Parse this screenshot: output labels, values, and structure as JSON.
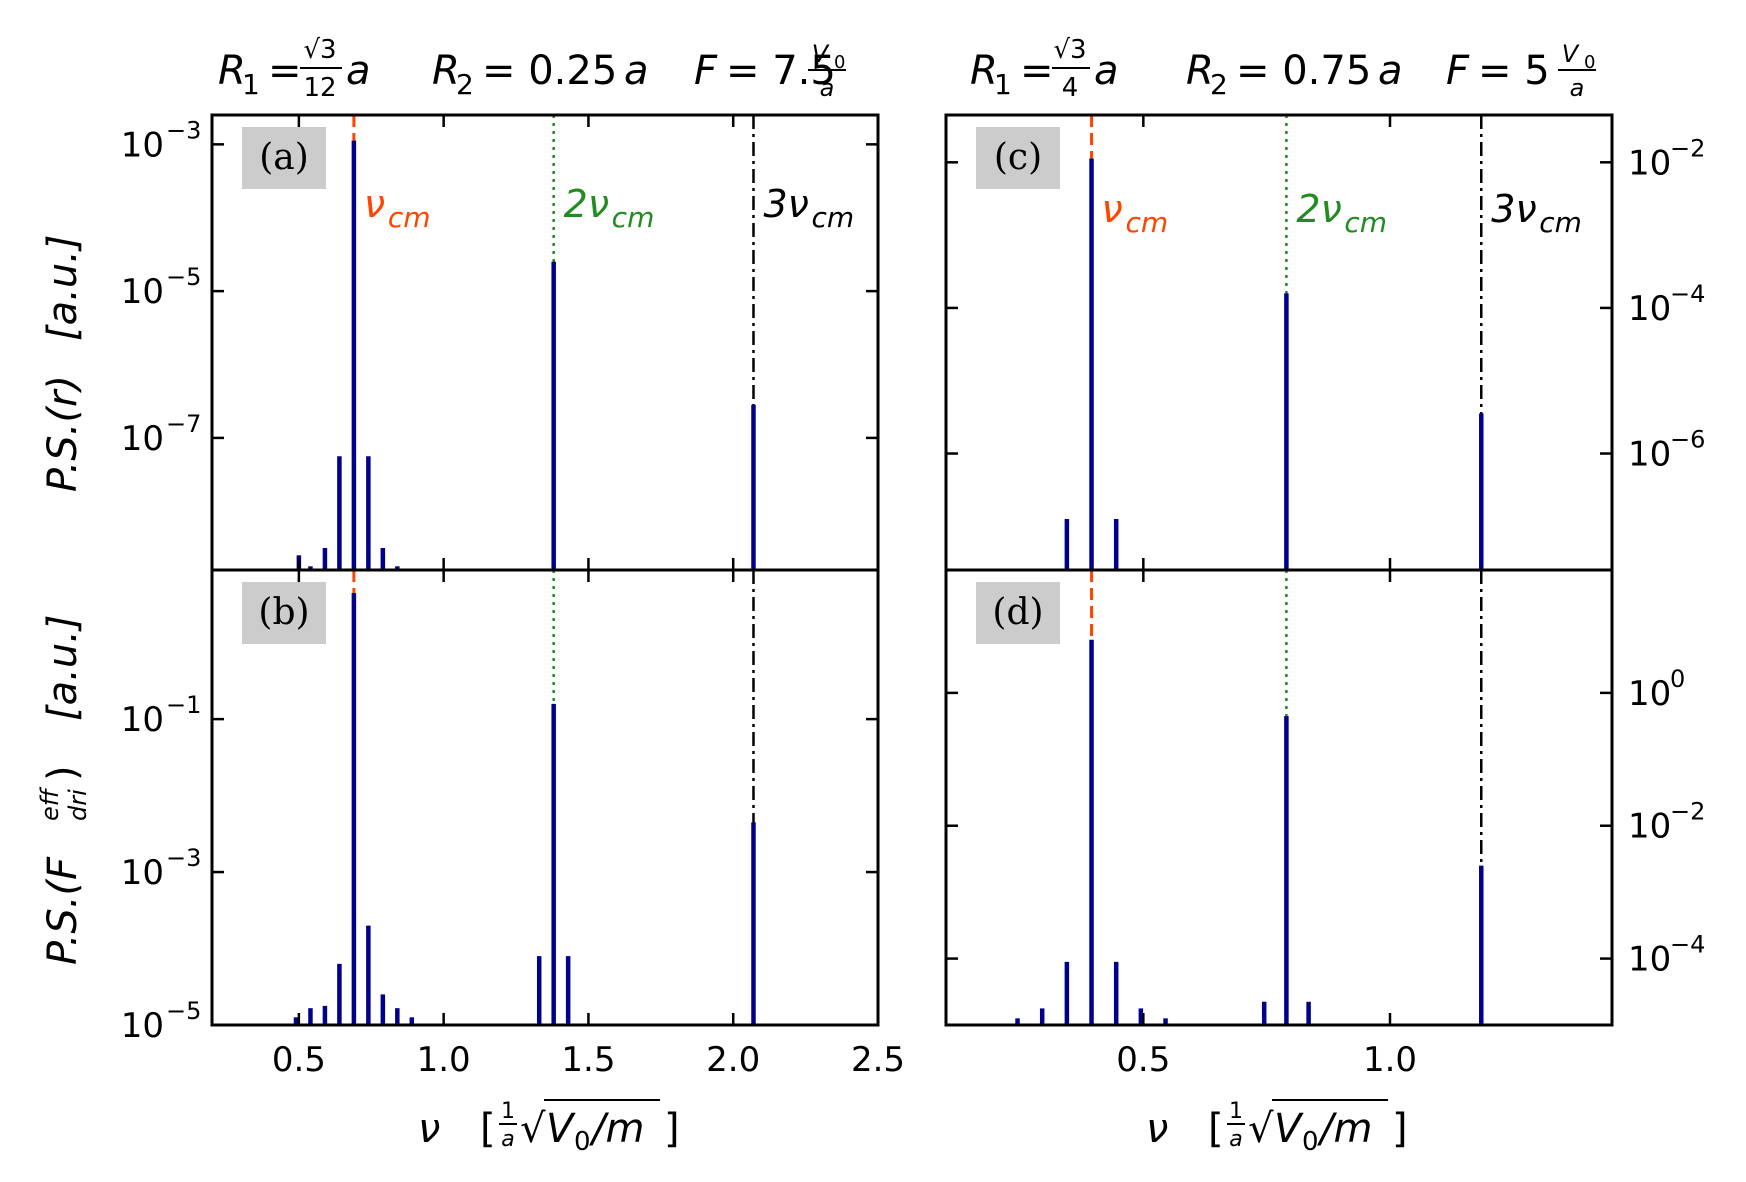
{
  "colors": {
    "spectrum": "#00008b",
    "nu_cm": "#ff4500",
    "two_nu_cm": "#228b22",
    "three_nu_cm": "#000000",
    "label_box": "#cccccc"
  },
  "titles": {
    "left": {
      "R1_lhs": "R",
      "R1_sub": "1",
      "R1_eq": "=",
      "R1_num": "√3",
      "R1_den": "12",
      "R1_unit": "a",
      "R2_lhs": "R",
      "R2_sub": "2",
      "R2_eq": "= 0.25",
      "R2_unit": "a",
      "F_lhs": "F",
      "F_eq": "= 7.5",
      "F_num": "V",
      "F_num_sub": "0",
      "F_den": "a"
    },
    "right": {
      "R1_lhs": "R",
      "R1_sub": "1",
      "R1_eq": "=",
      "R1_num": "√3",
      "R1_den": "4",
      "R1_unit": "a",
      "R2_lhs": "R",
      "R2_sub": "2",
      "R2_eq": "= 0.75",
      "R2_unit": "a",
      "F_lhs": "F",
      "F_eq": "= 5",
      "F_num": "V",
      "F_num_sub": "0",
      "F_den": "a"
    }
  },
  "ylabels": {
    "top": {
      "text": "P.S.(r)",
      "unit": "[a.u.]"
    },
    "bottom": {
      "prefix": "P.S.(F",
      "sup": "eff",
      "sub": "dri",
      "suffix": ")",
      "unit": "[a.u.]"
    }
  },
  "xlabel": {
    "nu": "ν",
    "frac_num": "1",
    "frac_den": "a",
    "sqrt": "√",
    "inner": "V",
    "inner_sub": "0",
    "rest": "/m",
    "open": "[",
    "close": "]"
  },
  "harmonic_labels": {
    "nu_cm": "ν",
    "nu_cm_sub": "cm",
    "two_nu_cm": "2ν",
    "three_nu_cm": "3ν"
  },
  "chart_data": [
    {
      "panel": "(a)",
      "type": "bar",
      "xlim": [
        0.2,
        2.5
      ],
      "ylim_log10": [
        -8.8,
        -2.6
      ],
      "yscale": "log",
      "ytick_side": "left",
      "yticks": [
        {
          "label": "10",
          "exp": "−3",
          "value": -3
        },
        {
          "label": "10",
          "exp": "−5",
          "value": -5
        },
        {
          "label": "10",
          "exp": "−7",
          "value": -7
        }
      ],
      "xticks": [],
      "harmonics": [
        0.69,
        1.38,
        2.07
      ],
      "x": [
        0.5,
        0.54,
        0.59,
        0.64,
        0.69,
        0.74,
        0.79,
        0.84,
        1.38,
        2.07
      ],
      "log10_values": [
        -8.6,
        -8.75,
        -8.5,
        -7.25,
        -2.95,
        -7.25,
        -8.5,
        -8.75,
        -4.6,
        -6.55
      ]
    },
    {
      "panel": "(b)",
      "type": "bar",
      "xlim": [
        0.2,
        2.5
      ],
      "ylim_log10": [
        -5.0,
        0.95
      ],
      "yscale": "log",
      "ytick_side": "left",
      "yticks": [
        {
          "label": "10",
          "exp": "−1",
          "value": -1
        },
        {
          "label": "10",
          "exp": "−3",
          "value": -3
        },
        {
          "label": "10",
          "exp": "−5",
          "value": -5
        }
      ],
      "xticks": [
        {
          "label": "0.5",
          "value": 0.5
        },
        {
          "label": "1.0",
          "value": 1.0
        },
        {
          "label": "1.5",
          "value": 1.5
        },
        {
          "label": "2.0",
          "value": 2.0
        },
        {
          "label": "2.5",
          "value": 2.5
        }
      ],
      "harmonics": [
        0.69,
        1.38,
        2.07
      ],
      "x": [
        0.49,
        0.54,
        0.59,
        0.64,
        0.69,
        0.74,
        0.79,
        0.84,
        0.89,
        1.33,
        1.38,
        1.43,
        2.07
      ],
      "log10_values": [
        -4.9,
        -4.78,
        -4.75,
        -4.2,
        0.65,
        -3.7,
        -4.6,
        -4.78,
        -4.9,
        -4.1,
        -0.8,
        -4.1,
        -2.35
      ]
    },
    {
      "panel": "(c)",
      "type": "bar",
      "xlim": [
        0.1,
        1.45
      ],
      "ylim_log10": [
        -7.6,
        -1.35
      ],
      "yscale": "log",
      "ytick_side": "right",
      "yticks": [
        {
          "label": "10",
          "exp": "−2",
          "value": -2
        },
        {
          "label": "10",
          "exp": "−4",
          "value": -4
        },
        {
          "label": "10",
          "exp": "−6",
          "value": -6
        }
      ],
      "xticks": [],
      "harmonics": [
        0.395,
        0.79,
        1.185
      ],
      "x": [
        0.345,
        0.395,
        0.445,
        0.79,
        1.185
      ],
      "log10_values": [
        -6.9,
        -1.95,
        -6.9,
        -3.8,
        -5.45
      ]
    },
    {
      "panel": "(d)",
      "type": "bar",
      "xlim": [
        0.1,
        1.45
      ],
      "ylim_log10": [
        -5.0,
        1.85
      ],
      "yscale": "log",
      "ytick_side": "right",
      "yticks": [
        {
          "label": "10",
          "exp": "0",
          "value": 0
        },
        {
          "label": "10",
          "exp": "−2",
          "value": -2
        },
        {
          "label": "10",
          "exp": "−4",
          "value": -4
        }
      ],
      "xticks": [
        {
          "label": "0.5",
          "value": 0.5
        },
        {
          "label": "1.0",
          "value": 1.0
        }
      ],
      "harmonics": [
        0.395,
        0.79,
        1.185
      ],
      "x": [
        0.245,
        0.295,
        0.345,
        0.395,
        0.445,
        0.495,
        0.545,
        0.745,
        0.79,
        0.835,
        1.185
      ],
      "log10_values": [
        -4.9,
        -4.75,
        -4.05,
        0.8,
        -4.05,
        -4.75,
        -4.9,
        -4.65,
        -0.35,
        -4.65,
        -2.6
      ]
    }
  ]
}
